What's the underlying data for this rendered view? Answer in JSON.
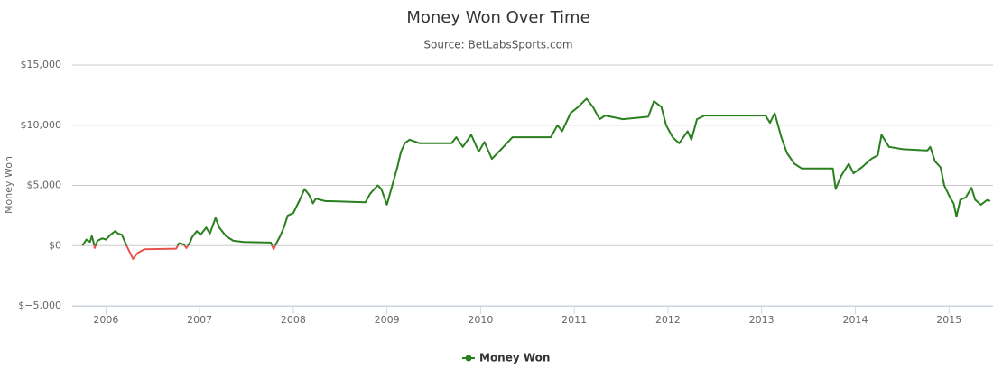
{
  "chart_data": {
    "type": "line",
    "title": "Money Won Over Time",
    "subtitle": "Source: BetLabsSports.com",
    "y_label": "Money Won",
    "x": [
      2005.75,
      2005.79,
      2005.83,
      2005.85,
      2005.87,
      2005.88,
      2005.91,
      2005.96,
      2006.0,
      2006.05,
      2006.1,
      2006.13,
      2006.17,
      2006.22,
      2006.29,
      2006.34,
      2006.41,
      2006.75,
      2006.78,
      2006.83,
      2006.86,
      2006.9,
      2006.92,
      2006.97,
      2007.01,
      2007.07,
      2007.11,
      2007.17,
      2007.21,
      2007.28,
      2007.36,
      2007.47,
      2007.76,
      2007.79,
      2007.82,
      2007.86,
      2007.9,
      2007.94,
      2008.0,
      2008.07,
      2008.12,
      2008.17,
      2008.21,
      2008.24,
      2008.34,
      2008.77,
      2008.82,
      2008.9,
      2008.94,
      2009.0,
      2009.05,
      2009.11,
      2009.15,
      2009.19,
      2009.24,
      2009.35,
      2009.69,
      2009.74,
      2009.81,
      2009.9,
      2009.98,
      2010.04,
      2010.12,
      2010.22,
      2010.34,
      2010.75,
      2010.82,
      2010.87,
      2010.96,
      2011.04,
      2011.13,
      2011.2,
      2011.27,
      2011.33,
      2011.52,
      2011.79,
      2011.85,
      2011.93,
      2011.98,
      2012.05,
      2012.12,
      2012.21,
      2012.25,
      2012.31,
      2012.39,
      2013.04,
      2013.09,
      2013.14,
      2013.21,
      2013.27,
      2013.35,
      2013.43,
      2013.76,
      2013.79,
      2013.85,
      2013.93,
      2013.98,
      2014.07,
      2014.17,
      2014.24,
      2014.28,
      2014.36,
      2014.51,
      2014.77,
      2014.8,
      2014.85,
      2014.91,
      2014.95,
      2015.01,
      2015.05,
      2015.08,
      2015.12,
      2015.18,
      2015.24,
      2015.28,
      2015.34,
      2015.41,
      2015.44
    ],
    "series": [
      {
        "name": "Money Won",
        "color": "#2a7f1f",
        "negative_color": "#e8534d",
        "values": [
          0,
          500,
          300,
          800,
          200,
          -200,
          400,
          600,
          500,
          900,
          1200,
          1000,
          900,
          0,
          -1100,
          -600,
          -300,
          -250,
          200,
          100,
          -200,
          300,
          700,
          1200,
          900,
          1500,
          1000,
          2300,
          1500,
          800,
          400,
          300,
          250,
          -300,
          200,
          800,
          1500,
          2500,
          2700,
          3800,
          4700,
          4200,
          3500,
          3900,
          3700,
          3600,
          4300,
          5000,
          4700,
          3400,
          4800,
          6500,
          7800,
          8500,
          8800,
          8500,
          8500,
          9000,
          8200,
          9200,
          7800,
          8600,
          7200,
          8000,
          9000,
          9000,
          10000,
          9500,
          11000,
          11500,
          12200,
          11500,
          10500,
          10800,
          10500,
          10700,
          12000,
          11500,
          10000,
          9000,
          8500,
          9500,
          8800,
          10500,
          10800,
          10800,
          10200,
          11000,
          9000,
          7700,
          6800,
          6400,
          6400,
          4700,
          5800,
          6800,
          6000,
          6500,
          7200,
          7500,
          9200,
          8200,
          8000,
          7900,
          8200,
          7000,
          6500,
          5000,
          4000,
          3500,
          2400,
          3800,
          4000,
          4800,
          3800,
          3400,
          3800,
          3700
        ]
      }
    ],
    "xlim": [
      2005.64,
      2015.47
    ],
    "xticks": [
      2006,
      2007,
      2008,
      2009,
      2010,
      2011,
      2012,
      2013,
      2014,
      2015
    ],
    "ylim": [
      -5000,
      15000
    ],
    "yticks": [
      {
        "value": -5000,
        "label": "$−5,000"
      },
      {
        "value": 0,
        "label": "$0"
      },
      {
        "value": 5000,
        "label": "$5,000"
      },
      {
        "value": 10000,
        "label": "$10,000"
      },
      {
        "value": 15000,
        "label": "$15,000"
      }
    ],
    "grid": true,
    "legend": "bottom"
  }
}
